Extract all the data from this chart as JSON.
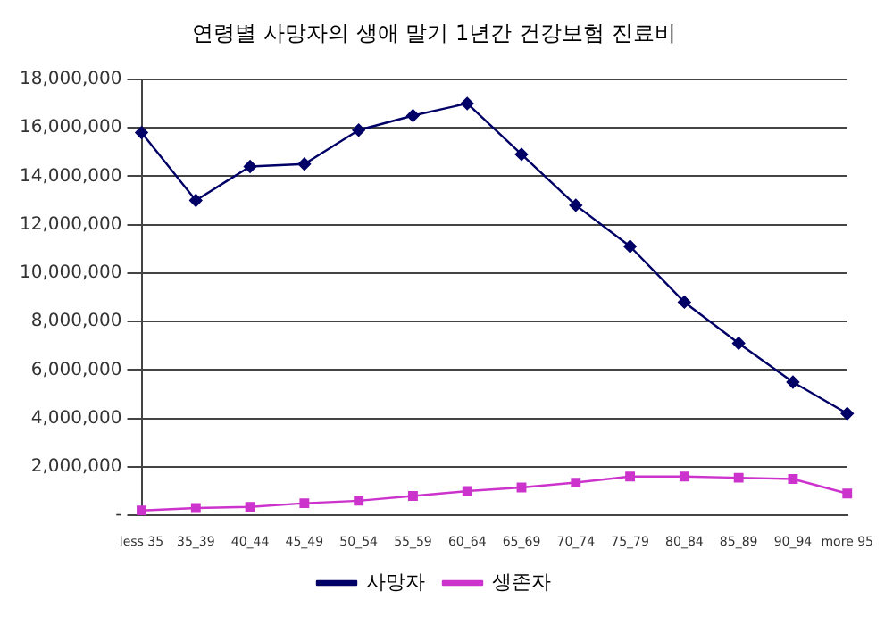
{
  "chart_data": {
    "type": "line",
    "title": "연령별 사망자의 생애 말기 1년간 건강보험 진료비",
    "categories": [
      "less 35",
      "35_39",
      "40_44",
      "45_49",
      "50_54",
      "55_59",
      "60_64",
      "65_69",
      "70_74",
      "75_79",
      "80_84",
      "85_89",
      "90_94",
      "more 95"
    ],
    "series": [
      {
        "name": "사망자",
        "color": "#000066",
        "marker": "diamond",
        "values": [
          15800000,
          13000000,
          14400000,
          14500000,
          15900000,
          16500000,
          17000000,
          14900000,
          12800000,
          11100000,
          8800000,
          7100000,
          5500000,
          4200000
        ]
      },
      {
        "name": "생존자",
        "color": "#cc33cc",
        "marker": "square",
        "values": [
          200000,
          300000,
          350000,
          500000,
          600000,
          800000,
          1000000,
          1150000,
          1350000,
          1600000,
          1600000,
          1550000,
          1500000,
          900000
        ]
      }
    ],
    "ylim": [
      0,
      18000000
    ],
    "yticks": [
      {
        "value": 0,
        "label": "-"
      },
      {
        "value": 2000000,
        "label": "2,000,000"
      },
      {
        "value": 4000000,
        "label": "4,000,000"
      },
      {
        "value": 6000000,
        "label": "6,000,000"
      },
      {
        "value": 8000000,
        "label": "8,000,000"
      },
      {
        "value": 10000000,
        "label": "10,000,000"
      },
      {
        "value": 12000000,
        "label": "12,000,000"
      },
      {
        "value": 14000000,
        "label": "14,000,000"
      },
      {
        "value": 16000000,
        "label": "16,000,000"
      },
      {
        "value": 18000000,
        "label": "18,000,000"
      }
    ],
    "grid": "y",
    "legend": "bottom",
    "line_style": "solid"
  }
}
